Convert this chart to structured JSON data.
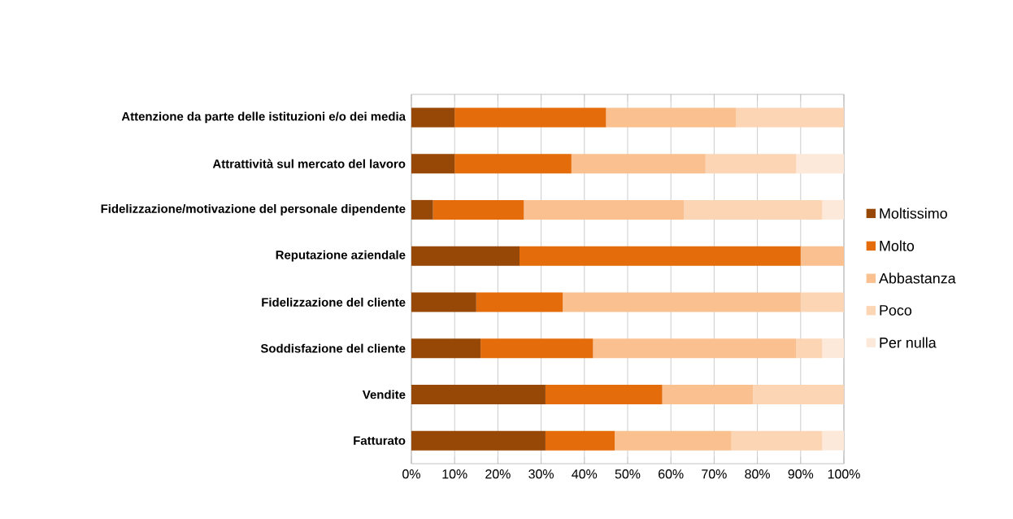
{
  "chart_data": {
    "type": "bar",
    "orientation": "horizontal",
    "stacked": true,
    "categories": [
      "Attenzione da parte delle istituzioni e/o dei media",
      "Attrattività sul mercato del lavoro",
      "Fidelizzazione/motivazione del personale dipendente",
      "Reputazione aziendale",
      "Fidelizzazione del cliente",
      "Soddisfazione del cliente",
      "Vendite",
      "Fatturato"
    ],
    "series": [
      {
        "name": "Moltissimo",
        "color": "#974706",
        "values": [
          10,
          10,
          5,
          25,
          15,
          16,
          31,
          31
        ]
      },
      {
        "name": "Molto",
        "color": "#e46c0a",
        "values": [
          35,
          27,
          21,
          65,
          20,
          26,
          27,
          16
        ]
      },
      {
        "name": "Abbastanza",
        "color": "#fac090",
        "values": [
          30,
          31,
          37,
          10,
          55,
          47,
          21,
          27
        ]
      },
      {
        "name": "Poco",
        "color": "#fcd5b5",
        "values": [
          25,
          21,
          32,
          0,
          10,
          6,
          21,
          21
        ]
      },
      {
        "name": "Per nulla",
        "color": "#fde9d9",
        "values": [
          0,
          11,
          5,
          0,
          0,
          5,
          0,
          5
        ]
      }
    ],
    "xlim": [
      0,
      100
    ],
    "xticks": [
      {
        "value": 0,
        "label": "0%"
      },
      {
        "value": 10,
        "label": "10%"
      },
      {
        "value": 20,
        "label": "20%"
      },
      {
        "value": 30,
        "label": "30%"
      },
      {
        "value": 40,
        "label": "40%"
      },
      {
        "value": 50,
        "label": "50%"
      },
      {
        "value": 60,
        "label": "60%"
      },
      {
        "value": 70,
        "label": "70%"
      },
      {
        "value": 80,
        "label": "80%"
      },
      {
        "value": 90,
        "label": "90%"
      },
      {
        "value": 100,
        "label": "100%"
      }
    ],
    "grid": "x",
    "legend": "right"
  }
}
